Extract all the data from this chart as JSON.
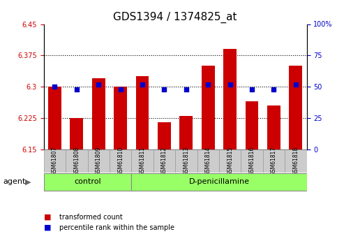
{
  "title": "GDS1394 / 1374825_at",
  "samples": [
    "GSM61807",
    "GSM61808",
    "GSM61809",
    "GSM61810",
    "GSM61811",
    "GSM61812",
    "GSM61813",
    "GSM61814",
    "GSM61815",
    "GSM61816",
    "GSM61817",
    "GSM61818"
  ],
  "bar_values": [
    6.3,
    6.225,
    6.32,
    6.3,
    6.325,
    6.215,
    6.23,
    6.35,
    6.39,
    6.265,
    6.255,
    6.35
  ],
  "percentile_pcts": [
    50,
    48,
    52,
    48,
    52,
    48,
    48,
    52,
    52,
    48,
    48,
    52
  ],
  "bar_bottom": 6.15,
  "ylim_left": [
    6.15,
    6.45
  ],
  "ylim_right": [
    0,
    100
  ],
  "yticks_left": [
    6.15,
    6.225,
    6.3,
    6.375,
    6.45
  ],
  "yticks_right": [
    0,
    25,
    50,
    75,
    100
  ],
  "ytick_labels_left": [
    "6.15",
    "6.225",
    "6.3",
    "6.375",
    "6.45"
  ],
  "ytick_labels_right": [
    "0",
    "25",
    "50",
    "75",
    "100%"
  ],
  "bar_color": "#CC0000",
  "dot_color": "#0000CC",
  "n_control": 4,
  "control_label": "control",
  "treatment_label": "D-penicillamine",
  "agent_label": "agent",
  "legend1": "transformed count",
  "legend2": "percentile rank within the sample",
  "group_box_color": "#99FF66",
  "sample_box_color": "#CCCCCC",
  "bg_color": "#FFFFFF",
  "dotted_lines": [
    6.225,
    6.3,
    6.375
  ],
  "bar_width": 0.6,
  "title_fontsize": 11,
  "tick_fontsize": 7
}
